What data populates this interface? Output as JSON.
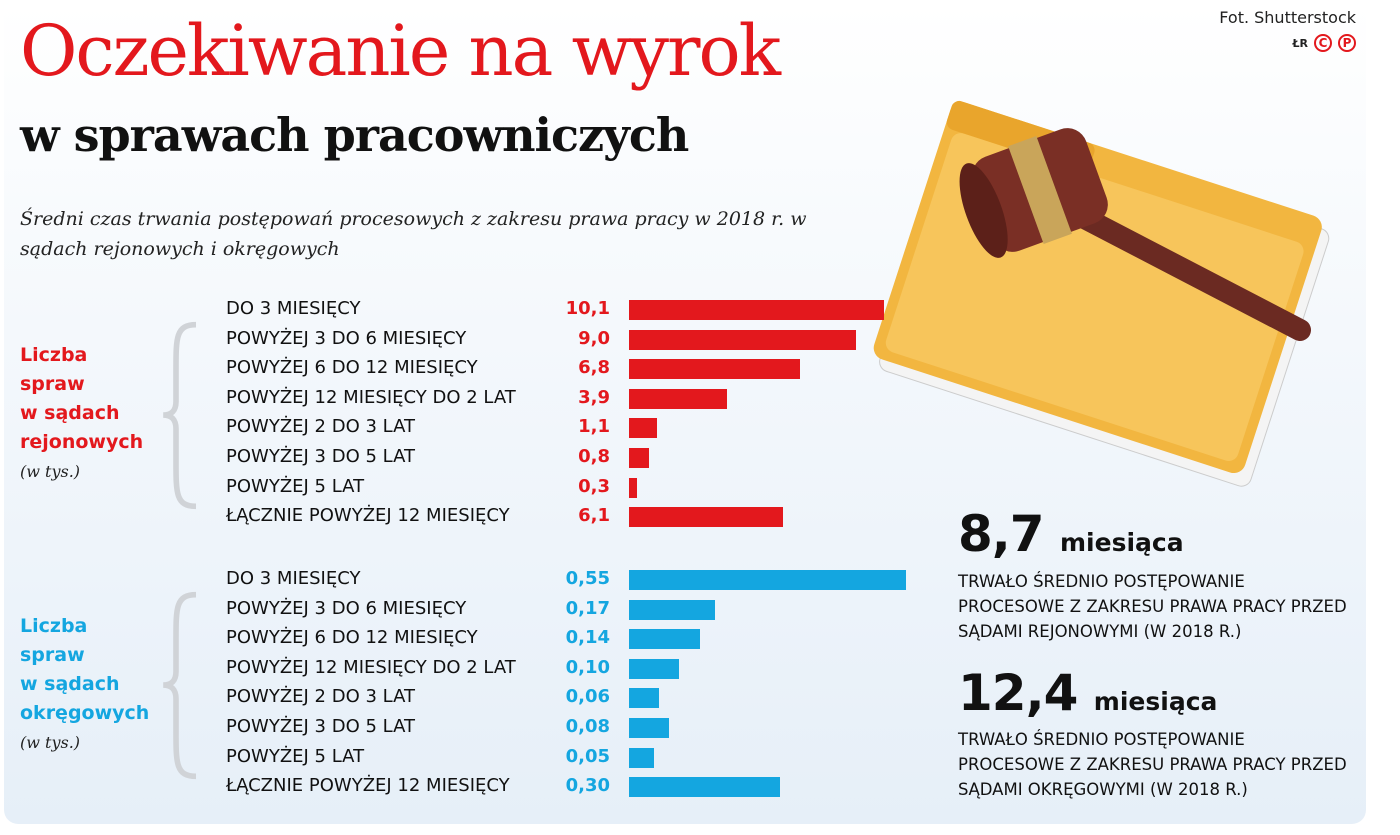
{
  "header": {
    "title": "Oczekiwanie na wyrok",
    "subtitle": "w sprawach pracowniczych",
    "description": "Średni czas trwania postępowań procesowych z zakresu prawa pracy w 2018 r. w sądach rejonowych i okręgowych",
    "credit": "Fot. Shutterstock",
    "logo_text": "ŁR",
    "logo_marks": [
      "C",
      "P"
    ]
  },
  "chart_data": [
    {
      "type": "bar",
      "orientation": "horizontal",
      "group_label": [
        "Liczba",
        "spraw",
        "w sądach",
        "rejonowych"
      ],
      "unit": "(w tys.)",
      "color": "#e3181d",
      "categories": [
        "DO 3 MIESIĘCY",
        "POWYŻEJ 3 DO 6 MIESIĘCY",
        "POWYŻEJ 6 DO 12 MIESIĘCY",
        "POWYŻEJ 12 MIESIĘCY DO 2 LAT",
        "POWYŻEJ 2 DO 3 LAT",
        "POWYŻEJ 3 DO 5 LAT",
        "POWYŻEJ 5 LAT",
        "ŁĄCZNIE POWYŻEJ 12 MIESIĘCY"
      ],
      "values": [
        10.1,
        9.0,
        6.8,
        3.9,
        1.1,
        0.8,
        0.3,
        6.1
      ],
      "labels": [
        "10,1",
        "9,0",
        "6,8",
        "3,9",
        "1,1",
        "0,8",
        "0,3",
        "6,1"
      ]
    },
    {
      "type": "bar",
      "orientation": "horizontal",
      "group_label": [
        "Liczba",
        "spraw",
        "w sądach",
        "okręgowych"
      ],
      "unit": "(w tys.)",
      "color": "#14a6e0",
      "categories": [
        "DO 3 MIESIĘCY",
        "POWYŻEJ 3 DO 6 MIESIĘCY",
        "POWYŻEJ 6 DO 12 MIESIĘCY",
        "POWYŻEJ 12 MIESIĘCY DO 2 LAT",
        "POWYŻEJ 2 DO 3 LAT",
        "POWYŻEJ 3 DO 5 LAT",
        "POWYŻEJ 5 LAT",
        "ŁĄCZNIE POWYŻEJ 12 MIESIĘCY"
      ],
      "values": [
        0.55,
        0.17,
        0.14,
        0.1,
        0.06,
        0.08,
        0.05,
        0.3
      ],
      "labels": [
        "0,55",
        "0,17",
        "0,14",
        "0,10",
        "0,06",
        "0,08",
        "0,05",
        "0,30"
      ]
    }
  ],
  "stats": [
    {
      "value": "8,7",
      "unit": "miesiąca",
      "text": "TRWAŁO ŚREDNIO POSTĘPOWANIE PROCESOWE Z ZAKRESU PRAWA PRACY PRZED SĄDAMI REJONOWYMI (W 2018 R.)"
    },
    {
      "value": "12,4",
      "unit": "miesiąca",
      "text": "TRWAŁO ŚREDNIO POSTĘPOWANIE PROCESOWE Z ZAKRESU PRAWA PRACY PRZED SĄDAMI OKRĘGOWYMI (W 2018 R.)"
    }
  ]
}
